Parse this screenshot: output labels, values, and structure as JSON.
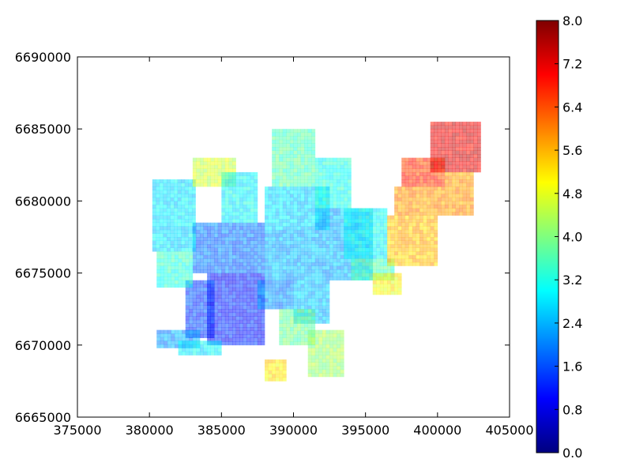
{
  "chart_data": {
    "type": "heatmap",
    "title": "",
    "xlabel": "",
    "ylabel": "",
    "xlim": [
      375000,
      405000
    ],
    "ylim": [
      6665000,
      6690000
    ],
    "x_ticks": [
      375000,
      380000,
      385000,
      390000,
      395000,
      400000,
      405000
    ],
    "y_ticks": [
      6665000,
      6670000,
      6675000,
      6680000,
      6685000,
      6690000
    ],
    "x_tick_labels": [
      "375000",
      "380000",
      "385000",
      "390000",
      "395000",
      "400000",
      "405000"
    ],
    "y_tick_labels": [
      "6665000",
      "6670000",
      "6675000",
      "6680000",
      "6685000",
      "6690000"
    ],
    "colormap": "jet",
    "alpha": 0.5,
    "grid": false,
    "colorbar": {
      "vmin": 0.0,
      "vmax": 8.0,
      "ticks": [
        0.0,
        0.8,
        1.6,
        2.4,
        3.2,
        4.0,
        4.8,
        5.6,
        6.4,
        7.2,
        8.0
      ],
      "tick_labels": [
        "0.0",
        "0.8",
        "1.6",
        "2.4",
        "3.2",
        "4.0",
        "4.8",
        "5.6",
        "6.4",
        "7.2",
        "8.0"
      ]
    },
    "grid_cell_size": 250,
    "regions": [
      {
        "x": [
          382500,
          384500
        ],
        "y": [
          6670500,
          6674500
        ],
        "value": 1.5
      },
      {
        "x": [
          384000,
          388000
        ],
        "y": [
          6670000,
          6675000
        ],
        "value": 1.2
      },
      {
        "x": [
          383000,
          388000
        ],
        "y": [
          6675000,
          6678500
        ],
        "value": 1.9
      },
      {
        "x": [
          380200,
          383000
        ],
        "y": [
          6676500,
          6681500
        ],
        "value": 2.8
      },
      {
        "x": [
          380500,
          383000
        ],
        "y": [
          6674000,
          6676500
        ],
        "value": 3.3
      },
      {
        "x": [
          380500,
          383500
        ],
        "y": [
          6669800,
          6671000
        ],
        "value": 2.2
      },
      {
        "x": [
          382000,
          385000
        ],
        "y": [
          6669300,
          6670300
        ],
        "value": 2.9
      },
      {
        "x": [
          383000,
          386000
        ],
        "y": [
          6681000,
          6683000
        ],
        "value": 4.6
      },
      {
        "x": [
          385000,
          387500
        ],
        "y": [
          6678500,
          6682000
        ],
        "value": 3.0
      },
      {
        "x": [
          388000,
          391500
        ],
        "y": [
          6674500,
          6678000
        ],
        "value": 2.4
      },
      {
        "x": [
          388000,
          392500
        ],
        "y": [
          6678000,
          6681000
        ],
        "value": 2.7
      },
      {
        "x": [
          388500,
          391500
        ],
        "y": [
          6681000,
          6684800
        ],
        "value": 3.6
      },
      {
        "x": [
          391500,
          394000
        ],
        "y": [
          6679500,
          6683000
        ],
        "value": 3.2
      },
      {
        "x": [
          391500,
          395500
        ],
        "y": [
          6674500,
          6679500
        ],
        "value": 2.4
      },
      {
        "x": [
          393500,
          396500
        ],
        "y": [
          6676000,
          6679500
        ],
        "value": 3.0
      },
      {
        "x": [
          390000,
          392500
        ],
        "y": [
          6671500,
          6674500
        ],
        "value": 2.5
      },
      {
        "x": [
          387500,
          390000
        ],
        "y": [
          6672500,
          6674500
        ],
        "value": 2.1
      },
      {
        "x": [
          389000,
          391500
        ],
        "y": [
          6670000,
          6672500
        ],
        "value": 3.8
      },
      {
        "x": [
          391000,
          393500
        ],
        "y": [
          6667800,
          6671000
        ],
        "value": 4.2
      },
      {
        "x": [
          388000,
          389500
        ],
        "y": [
          6667500,
          6669000
        ],
        "value": 5.2
      },
      {
        "x": [
          394000,
          397000
        ],
        "y": [
          6674500,
          6676000
        ],
        "value": 3.6
      },
      {
        "x": [
          395500,
          397500
        ],
        "y": [
          6673500,
          6675000
        ],
        "value": 5.0
      },
      {
        "x": [
          396500,
          400000
        ],
        "y": [
          6675500,
          6679000
        ],
        "value": 5.5
      },
      {
        "x": [
          397000,
          400500
        ],
        "y": [
          6679000,
          6681000
        ],
        "value": 5.8
      },
      {
        "x": [
          397500,
          400500
        ],
        "y": [
          6681000,
          6683000
        ],
        "value": 6.6
      },
      {
        "x": [
          399500,
          403000
        ],
        "y": [
          6682000,
          6685500
        ],
        "value": 7.2
      },
      {
        "x": [
          400500,
          402500
        ],
        "y": [
          6679000,
          6682000
        ],
        "value": 5.8
      }
    ]
  }
}
